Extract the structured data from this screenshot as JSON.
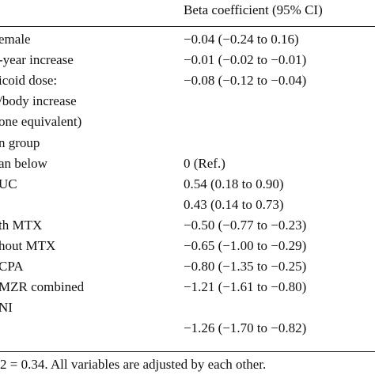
{
  "table": {
    "header": "Beta coefficient (95% CI)",
    "rows": [
      {
        "label": "emale",
        "value": "−0.04 (−0.24 to 0.16)"
      },
      {
        "label": "-year increase",
        "value": "−0.01 (−0.02 to −0.01)"
      },
      {
        "label": "icoid dose:",
        "value": "−0.08 (−0.12 to −0.04)"
      },
      {
        "label": "/body increase"
      },
      {
        "label": "one equivalent)"
      },
      {
        "label": "n group"
      },
      {
        "label": "an below",
        "value": "0 (Ref.)"
      },
      {
        "label": "UC",
        "value": "0.54 (0.18 to 0.90)"
      },
      {
        "value": "0.43 (0.14 to 0.73)"
      },
      {
        "label": "th MTX",
        "value": "−0.50 (−0.77 to −0.23)"
      },
      {
        "label": "hout MTX",
        "value": "−0.65 (−1.00 to −0.29)"
      },
      {
        "label": "CPA",
        "value": "−0.80 (−1.35 to −0.25)"
      },
      {
        "label": "MZR combined",
        "value": "−1.21 (−1.61 to −0.80)"
      },
      {
        "label": "NI"
      },
      {
        "value": "−1.26 (−1.70 to −0.82)"
      }
    ],
    "footnote": "2 = 0.34. All variables are adjusted by each other."
  }
}
